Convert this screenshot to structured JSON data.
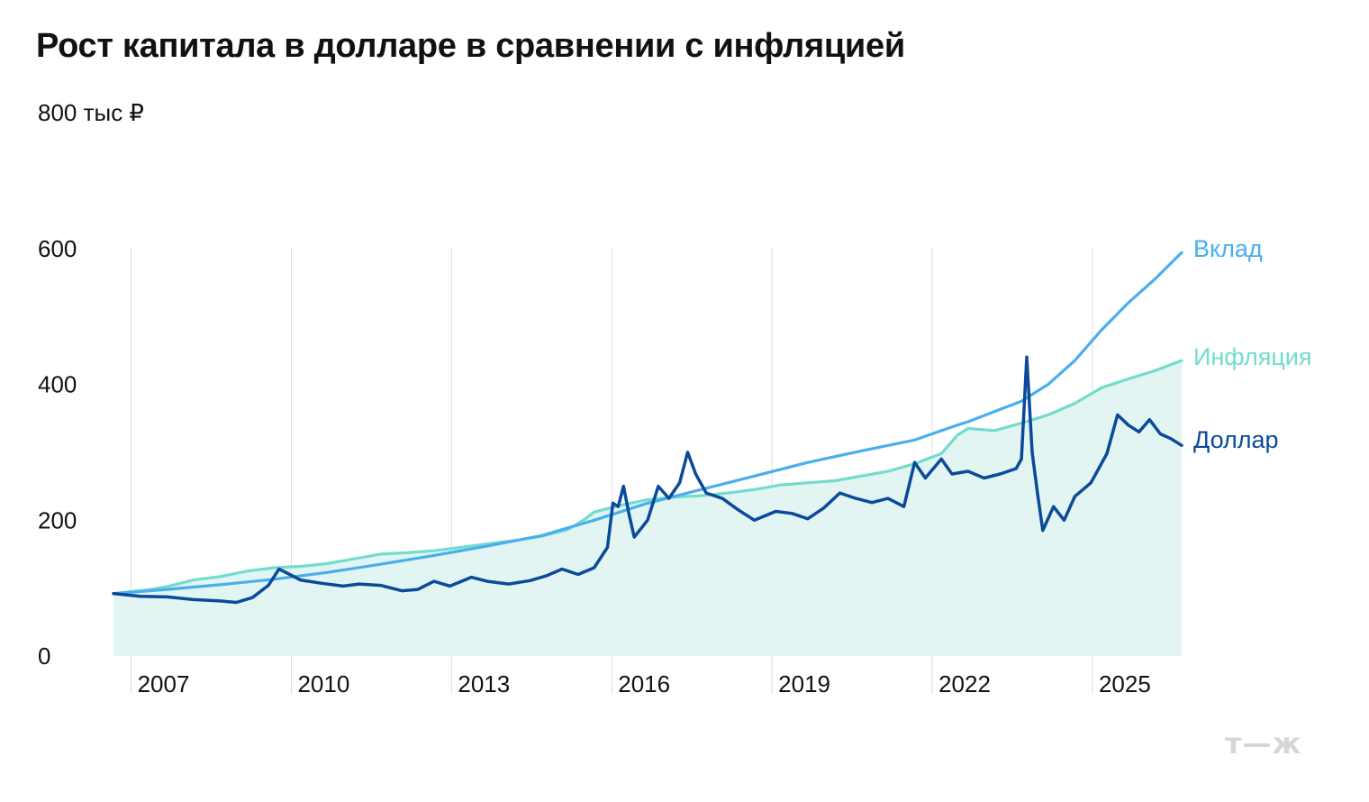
{
  "title": "Рост капитала в долларе в сравнении с инфляцией",
  "brand": "т—ж",
  "colors": {
    "dollar": "#0b4a9a",
    "deposit": "#4aaeee",
    "inflation": "#72dccd",
    "area": "#e3f5f3",
    "grid": "#dddddd"
  },
  "chart_data": {
    "type": "line",
    "title": "Рост капитала в долларе в сравнении с инфляцией",
    "ylabel": "",
    "ylim": [
      0,
      800
    ],
    "xlim": [
      2006.0,
      2026.0
    ],
    "yticks": [
      {
        "value": 0,
        "label": "0"
      },
      {
        "value": 200,
        "label": "200"
      },
      {
        "value": 400,
        "label": "400"
      },
      {
        "value": 600,
        "label": "600"
      },
      {
        "value": 800,
        "label": "800 тыс ₽"
      }
    ],
    "xticks": [
      {
        "value": 2006.33,
        "label": "2007"
      },
      {
        "value": 2009.33,
        "label": "2010"
      },
      {
        "value": 2012.33,
        "label": "2013"
      },
      {
        "value": 2015.33,
        "label": "2016"
      },
      {
        "value": 2018.33,
        "label": "2019"
      },
      {
        "value": 2021.33,
        "label": "2022"
      },
      {
        "value": 2024.33,
        "label": "2025"
      }
    ],
    "legend_placement": "end-of-line labels, right",
    "grid": "vertical year lines",
    "series": [
      {
        "name": "Вклад",
        "color": "#4aaeee",
        "points": [
          [
            2006.0,
            92
          ],
          [
            2007.0,
            98
          ],
          [
            2008.0,
            105
          ],
          [
            2009.0,
            113
          ],
          [
            2010.0,
            123
          ],
          [
            2011.0,
            135
          ],
          [
            2012.0,
            148
          ],
          [
            2013.0,
            162
          ],
          [
            2014.0,
            177
          ],
          [
            2014.7,
            193
          ],
          [
            2015.0,
            200
          ],
          [
            2016.0,
            225
          ],
          [
            2017.0,
            245
          ],
          [
            2018.0,
            265
          ],
          [
            2019.0,
            285
          ],
          [
            2020.0,
            302
          ],
          [
            2021.0,
            318
          ],
          [
            2021.8,
            340
          ],
          [
            2022.0,
            345
          ],
          [
            2023.0,
            375
          ],
          [
            2023.5,
            400
          ],
          [
            2024.0,
            435
          ],
          [
            2024.5,
            480
          ],
          [
            2025.0,
            520
          ],
          [
            2025.5,
            555
          ],
          [
            2026.0,
            594
          ]
        ]
      },
      {
        "name": "Инфляция",
        "color": "#72dccd",
        "points": [
          [
            2006.0,
            92
          ],
          [
            2006.6,
            97
          ],
          [
            2007.0,
            102
          ],
          [
            2007.5,
            112
          ],
          [
            2008.0,
            117
          ],
          [
            2008.5,
            125
          ],
          [
            2009.0,
            130
          ],
          [
            2009.5,
            132
          ],
          [
            2010.0,
            136
          ],
          [
            2010.5,
            143
          ],
          [
            2011.0,
            150
          ],
          [
            2011.5,
            152
          ],
          [
            2012.0,
            155
          ],
          [
            2012.5,
            160
          ],
          [
            2013.0,
            165
          ],
          [
            2013.5,
            170
          ],
          [
            2014.0,
            176
          ],
          [
            2014.5,
            186
          ],
          [
            2014.8,
            200
          ],
          [
            2015.0,
            212
          ],
          [
            2015.5,
            222
          ],
          [
            2016.0,
            230
          ],
          [
            2016.5,
            234
          ],
          [
            2017.0,
            236
          ],
          [
            2017.5,
            240
          ],
          [
            2018.0,
            245
          ],
          [
            2018.5,
            252
          ],
          [
            2019.0,
            255
          ],
          [
            2019.5,
            258
          ],
          [
            2020.0,
            265
          ],
          [
            2020.5,
            272
          ],
          [
            2021.0,
            283
          ],
          [
            2021.5,
            298
          ],
          [
            2021.8,
            325
          ],
          [
            2022.0,
            335
          ],
          [
            2022.5,
            332
          ],
          [
            2023.0,
            343
          ],
          [
            2023.5,
            355
          ],
          [
            2024.0,
            372
          ],
          [
            2024.5,
            395
          ],
          [
            2025.0,
            408
          ],
          [
            2025.5,
            420
          ],
          [
            2026.0,
            435
          ]
        ]
      },
      {
        "name": "Доллар",
        "color": "#0b4a9a",
        "points": [
          [
            2006.0,
            92
          ],
          [
            2006.5,
            88
          ],
          [
            2007.0,
            87
          ],
          [
            2007.5,
            83
          ],
          [
            2008.0,
            81
          ],
          [
            2008.3,
            79
          ],
          [
            2008.6,
            86
          ],
          [
            2008.9,
            104
          ],
          [
            2009.1,
            128
          ],
          [
            2009.3,
            120
          ],
          [
            2009.5,
            112
          ],
          [
            2009.9,
            107
          ],
          [
            2010.3,
            103
          ],
          [
            2010.6,
            106
          ],
          [
            2011.0,
            104
          ],
          [
            2011.4,
            96
          ],
          [
            2011.7,
            98
          ],
          [
            2012.0,
            110
          ],
          [
            2012.3,
            103
          ],
          [
            2012.7,
            116
          ],
          [
            2013.0,
            110
          ],
          [
            2013.4,
            106
          ],
          [
            2013.8,
            111
          ],
          [
            2014.1,
            118
          ],
          [
            2014.4,
            128
          ],
          [
            2014.7,
            120
          ],
          [
            2015.0,
            130
          ],
          [
            2015.25,
            160
          ],
          [
            2015.35,
            225
          ],
          [
            2015.45,
            220
          ],
          [
            2015.55,
            250
          ],
          [
            2015.65,
            210
          ],
          [
            2015.75,
            175
          ],
          [
            2016.0,
            200
          ],
          [
            2016.2,
            250
          ],
          [
            2016.4,
            232
          ],
          [
            2016.6,
            255
          ],
          [
            2016.75,
            300
          ],
          [
            2016.9,
            268
          ],
          [
            2017.1,
            240
          ],
          [
            2017.4,
            232
          ],
          [
            2017.7,
            215
          ],
          [
            2018.0,
            200
          ],
          [
            2018.4,
            213
          ],
          [
            2018.7,
            210
          ],
          [
            2019.0,
            202
          ],
          [
            2019.3,
            218
          ],
          [
            2019.6,
            240
          ],
          [
            2019.9,
            232
          ],
          [
            2020.2,
            226
          ],
          [
            2020.5,
            232
          ],
          [
            2020.8,
            220
          ],
          [
            2021.0,
            285
          ],
          [
            2021.2,
            262
          ],
          [
            2021.5,
            290
          ],
          [
            2021.7,
            268
          ],
          [
            2022.0,
            272
          ],
          [
            2022.3,
            262
          ],
          [
            2022.6,
            268
          ],
          [
            2022.9,
            276
          ],
          [
            2023.0,
            290
          ],
          [
            2023.1,
            440
          ],
          [
            2023.2,
            300
          ],
          [
            2023.3,
            240
          ],
          [
            2023.4,
            185
          ],
          [
            2023.6,
            220
          ],
          [
            2023.8,
            200
          ],
          [
            2024.0,
            235
          ],
          [
            2024.3,
            255
          ],
          [
            2024.6,
            298
          ],
          [
            2024.8,
            355
          ],
          [
            2025.0,
            340
          ],
          [
            2025.2,
            330
          ],
          [
            2025.4,
            348
          ],
          [
            2025.6,
            327
          ],
          [
            2025.8,
            320
          ],
          [
            2026.0,
            310
          ]
        ]
      }
    ]
  }
}
